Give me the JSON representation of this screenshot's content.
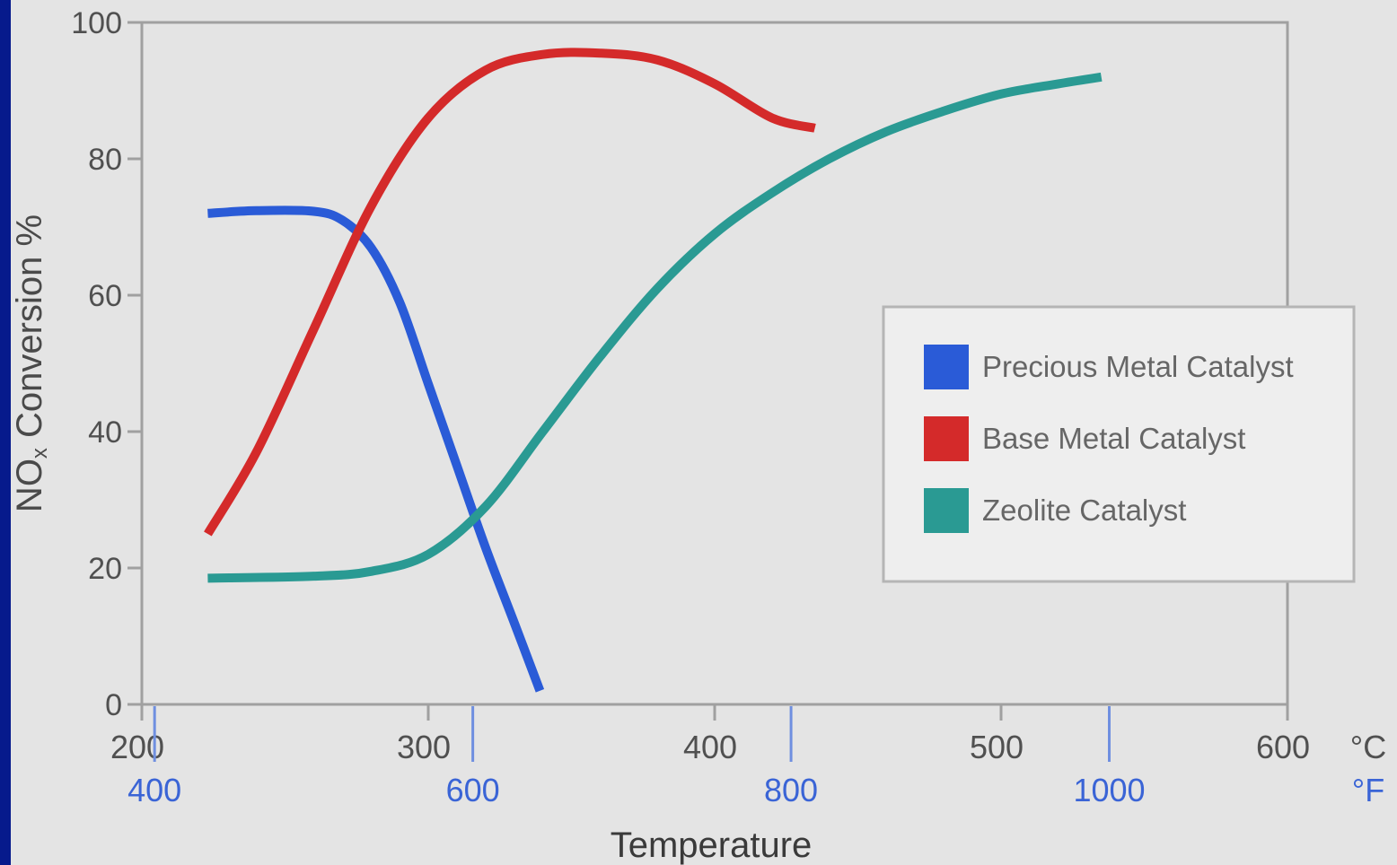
{
  "chart_data": {
    "type": "line",
    "title": "",
    "xlabel": "Temperature",
    "ylabel": "NOx Conversion %",
    "ylabel_parts": {
      "main": "NO",
      "sub": "x",
      "rest": " Conversion  %"
    },
    "xlim": [
      200,
      600
    ],
    "ylim": [
      0,
      100
    ],
    "x_unit": "°C",
    "x2_unit": "°F",
    "x_ticks": [
      200,
      300,
      400,
      500,
      600
    ],
    "x_tick_labels": [
      "200",
      "300",
      "400",
      "500",
      "600"
    ],
    "x2_ticks_f": [
      400,
      600,
      800,
      1000
    ],
    "x2_tick_labels": [
      "400",
      "600",
      "800",
      "1000"
    ],
    "y_ticks": [
      0,
      20,
      40,
      60,
      80,
      100
    ],
    "y_tick_labels": [
      "0",
      "20",
      "40",
      "60",
      "80",
      "100"
    ],
    "grid": false,
    "legend_position": "right",
    "series": [
      {
        "name": "Precious Metal Catalyst",
        "color": "#2a5bd7",
        "points": [
          [
            223,
            72
          ],
          [
            240,
            72.4
          ],
          [
            260,
            72.3
          ],
          [
            270,
            71
          ],
          [
            280,
            67
          ],
          [
            290,
            59
          ],
          [
            300,
            47
          ],
          [
            310,
            35
          ],
          [
            320,
            23
          ],
          [
            330,
            12
          ],
          [
            339,
            2
          ]
        ]
      },
      {
        "name": "Base Metal Catalyst",
        "color": "#d42a2a",
        "points": [
          [
            223,
            25
          ],
          [
            240,
            37
          ],
          [
            260,
            55
          ],
          [
            280,
            73
          ],
          [
            300,
            86
          ],
          [
            320,
            93
          ],
          [
            340,
            95.3
          ],
          [
            360,
            95.5
          ],
          [
            380,
            94.5
          ],
          [
            400,
            91
          ],
          [
            420,
            86
          ],
          [
            435,
            84.5
          ]
        ]
      },
      {
        "name": "Zeolite Catalyst",
        "color": "#2a9a93",
        "points": [
          [
            223,
            18.5
          ],
          [
            260,
            18.8
          ],
          [
            280,
            19.5
          ],
          [
            300,
            22
          ],
          [
            320,
            29
          ],
          [
            340,
            40
          ],
          [
            360,
            51
          ],
          [
            380,
            61
          ],
          [
            400,
            69
          ],
          [
            420,
            75
          ],
          [
            440,
            80
          ],
          [
            460,
            84
          ],
          [
            480,
            87
          ],
          [
            500,
            89.5
          ],
          [
            520,
            91
          ],
          [
            535,
            92
          ]
        ]
      }
    ]
  }
}
